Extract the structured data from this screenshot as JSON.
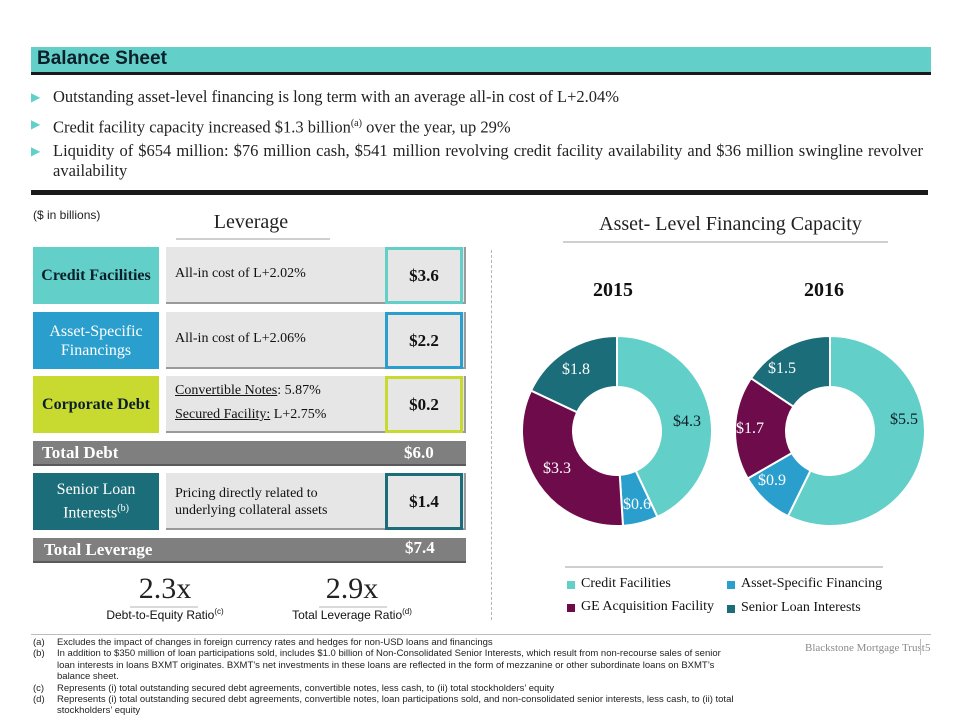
{
  "header": {
    "title": "Balance Sheet"
  },
  "bullets": [
    {
      "parts": [
        "Outstanding asset-level financing is long term with an average all-in cost of L+2.04%"
      ]
    },
    {
      "parts": [
        "Credit facility capacity increased $1.3 billion",
        "(a)",
        " over the year, up 29%"
      ]
    },
    {
      "parts": [
        "Liquidity of $654 million: $76 million cash, $541 million revolving credit facility availability and $36 million swingline revolver availability"
      ]
    }
  ],
  "unit_note": "($ in billions)",
  "leverage": {
    "title": "Leverage",
    "rows": [
      {
        "label": "Credit Facilities",
        "desc": "All-in cost of L+2.02%",
        "value": "$3.6",
        "color": "#63cfc9",
        "text_color": "#0b1f2a"
      },
      {
        "label": "Asset-Specific Financings",
        "desc": "All-in cost of L+2.06%",
        "value": "$2.2",
        "color": "#2a9fcd",
        "text_color": "#ffffff"
      },
      {
        "label": "Corporate Debt",
        "desc_a_label": "Convertible Notes",
        "desc_a_value": ": 5.87%",
        "desc_b_label": "Secured Facility:",
        "desc_b_value": " L+2.75%",
        "value": "$0.2",
        "color": "#c8d92f",
        "text_color": "#0b1f2a"
      }
    ],
    "total_debt": {
      "label": "Total Debt",
      "value": "$6.0"
    },
    "senior_loan": {
      "label": "Senior Loan Interests",
      "label_sup": "(b)",
      "desc_1": "Pricing directly related to",
      "desc_2": "underlying collateral assets",
      "value": "$1.4",
      "color": "#1b6d79",
      "text_color": "#ffffff"
    },
    "total_leverage": {
      "label": "Total Leverage",
      "value": "$7.4"
    },
    "ratios": [
      {
        "value": "2.3x",
        "label": "Debt-to-Equity Ratio",
        "sup": "(c)"
      },
      {
        "value": "2.9x",
        "label": "Total Leverage Ratio",
        "sup": "(d)"
      }
    ]
  },
  "capacity": {
    "title": "Asset- Level Financing Capacity",
    "legend": [
      {
        "name": "Credit Facilities",
        "color": "#63cfc9"
      },
      {
        "name": "Asset-Specific Financing",
        "color": "#2a9fcd"
      },
      {
        "name": "GE Acquisition Facility",
        "color": "#6e0b4b"
      },
      {
        "name": "Senior Loan Interests",
        "color": "#1b6d79"
      }
    ]
  },
  "chart_data": [
    {
      "type": "pie",
      "title": "2015",
      "categories": [
        "Credit Facilities",
        "Asset-Specific Financing",
        "GE Acquisition Facility",
        "Senior Loan Interests"
      ],
      "values": [
        4.3,
        0.6,
        3.3,
        1.8
      ],
      "labels": [
        "$4.3",
        "$0.6",
        "$3.3",
        "$1.8"
      ],
      "colors": [
        "#63cfc9",
        "#2a9fcd",
        "#6e0b4b",
        "#1b6d79"
      ]
    },
    {
      "type": "pie",
      "title": "2016",
      "categories": [
        "Credit Facilities",
        "Asset-Specific Financing",
        "GE Acquisition Facility",
        "Senior Loan Interests"
      ],
      "values": [
        5.5,
        0.9,
        1.7,
        1.5
      ],
      "labels": [
        "$5.5",
        "$0.9",
        "$1.7",
        "$1.5"
      ],
      "colors": [
        "#63cfc9",
        "#2a9fcd",
        "#6e0b4b",
        "#1b6d79"
      ]
    }
  ],
  "footnotes": [
    {
      "key": "(a)",
      "text": "Excludes the impact of changes in foreign currency rates and hedges for non-USD loans and financings"
    },
    {
      "key": "(b)",
      "text": "In addition to $350 million of loan participations sold, includes $1.0 billion of Non-Consolidated Senior Interests, which result from non-recourse sales of senior loan interests in loans BXMT originates. BXMT’s net investments in these loans are reflected in the form of mezzanine or other subordinate loans on BXMT’s balance sheet."
    },
    {
      "key": "(c)",
      "text": "Represents (i) total outstanding secured debt agreements, convertible notes, less cash, to (ii) total stockholders’ equity"
    },
    {
      "key": "(d)",
      "text": "Represents (i) total outstanding secured debt agreements, convertible notes, loan participations sold, and non-consolidated senior interests, less cash, to (ii) total stockholders’ equity"
    }
  ],
  "footer": {
    "brand": "Blackstone Mortgage Trust",
    "page": "5"
  }
}
